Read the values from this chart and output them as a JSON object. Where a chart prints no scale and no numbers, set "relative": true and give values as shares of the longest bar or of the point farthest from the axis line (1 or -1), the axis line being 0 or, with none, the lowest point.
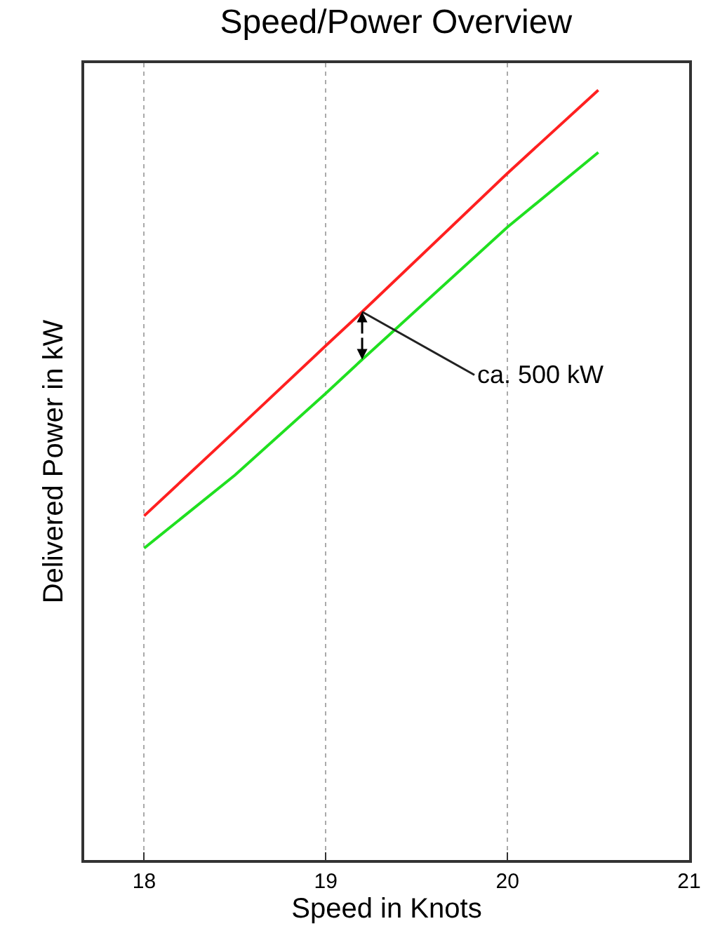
{
  "chart_data": {
    "type": "line",
    "title": "Speed/Power Overview",
    "xlabel": "Speed in Knots",
    "ylabel": "Delivered Power in kW",
    "relative": true,
    "xlim": [
      17.67,
      21
    ],
    "xticks": [
      18,
      19,
      20,
      21
    ],
    "grid": "x",
    "line_style": "solid",
    "marker": "none",
    "x": [
      18,
      18.5,
      19,
      19.2,
      20,
      20.5
    ],
    "series": [
      {
        "color": "#ff2020",
        "values": [
          0.447,
          0.557,
          0.668,
          0.712,
          0.892,
          1
        ]
      },
      {
        "color": "#20e020",
        "values": [
          0.405,
          0.5,
          0.606,
          0.65,
          0.822,
          0.919
        ]
      }
    ],
    "annotations": [
      {
        "text": "ca. 500 kW",
        "x": 19.2,
        "y": 0.712
      }
    ]
  }
}
